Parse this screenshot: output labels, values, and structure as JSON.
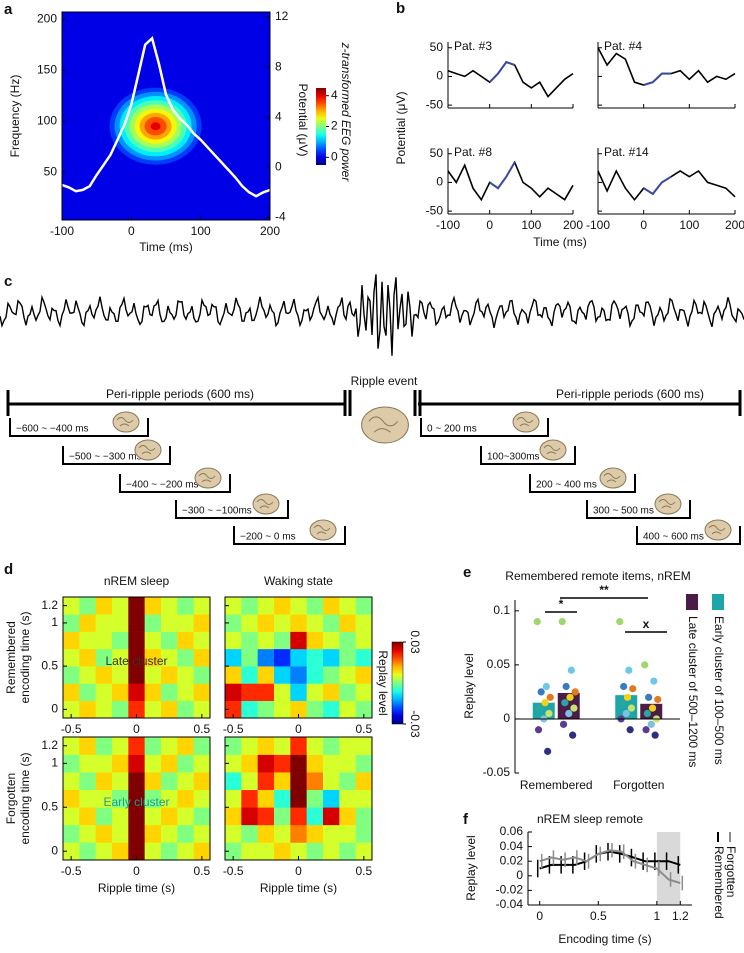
{
  "chart_data": [
    {
      "panel": "a",
      "type": "spectrogram",
      "xlabel": "Time (ms)",
      "ylabel": "Frequency (Hz)",
      "y2label": "Potential (μV)",
      "colorbar_label": "z-transformed EEG power",
      "xlim": [
        -100,
        200
      ],
      "xticks": [
        -100,
        0,
        100,
        200
      ],
      "ylim": [
        3,
        207
      ],
      "yticks": [
        50,
        100,
        150,
        200
      ],
      "y2lim": [
        -4.2,
        12.4
      ],
      "y2ticks": [
        -4,
        0,
        4,
        8,
        12
      ],
      "clim": [
        -0.5,
        4.5
      ],
      "cticks": [
        0,
        2,
        4
      ],
      "peak": {
        "x": 35,
        "y": 95,
        "value": 4
      },
      "line": {
        "axis": "y2",
        "color": "#ffffff",
        "x": [
          -100,
          -90,
          -80,
          -70,
          -60,
          -50,
          -40,
          -30,
          -20,
          -10,
          0,
          10,
          20,
          30,
          40,
          50,
          60,
          70,
          80,
          90,
          100,
          110,
          120,
          130,
          140,
          150,
          160,
          170,
          180,
          190,
          200
        ],
        "values": [
          -1.4,
          -1.6,
          -1.9,
          -1.8,
          -1.5,
          -0.6,
          0.2,
          1.0,
          2.2,
          3.4,
          5.0,
          7.4,
          9.8,
          10.3,
          8.2,
          5.8,
          4.6,
          3.9,
          3.4,
          2.7,
          2.2,
          1.6,
          1.0,
          0.4,
          -0.2,
          -0.8,
          -1.5,
          -2.0,
          -2.3,
          -2.0,
          -1.8
        ]
      }
    },
    {
      "panel": "b",
      "type": "line_grid",
      "xlabel": "Time (ms)",
      "ylabel": "Potential (μV)",
      "xlim": [
        -100,
        200
      ],
      "xticks": [
        -100,
        0,
        100,
        200
      ],
      "ylim": [
        -55,
        60
      ],
      "yticks": [
        -50,
        0,
        50
      ],
      "color": "#000000",
      "highlight_color": "#3b4aa0",
      "highlight_xlim": [
        0,
        60
      ],
      "x": [
        -100,
        -80,
        -60,
        -40,
        -20,
        0,
        20,
        40,
        60,
        80,
        100,
        120,
        140,
        160,
        180,
        200
      ],
      "subplots": [
        {
          "title": "Pat. #3",
          "values": [
            10,
            5,
            0,
            10,
            0,
            -10,
            5,
            25,
            20,
            -10,
            -20,
            -10,
            -35,
            -20,
            -5,
            5
          ]
        },
        {
          "title": "Pat. #4",
          "values": [
            50,
            20,
            40,
            30,
            -10,
            -15,
            -10,
            5,
            5,
            10,
            -5,
            10,
            -10,
            0,
            -5,
            5
          ]
        },
        {
          "title": "Pat. #8",
          "values": [
            20,
            0,
            30,
            -10,
            -30,
            0,
            -10,
            10,
            35,
            0,
            -10,
            -25,
            -10,
            -20,
            -30,
            -5
          ]
        },
        {
          "title": "Pat. #14",
          "values": [
            20,
            -15,
            20,
            -10,
            -30,
            -10,
            -20,
            0,
            10,
            20,
            10,
            20,
            0,
            -5,
            -10,
            -25
          ]
        }
      ]
    },
    {
      "panel": "d",
      "type": "heatmap_grid",
      "xlabel": "Ripple time (s)",
      "colorbar_label": "Replay level",
      "column_titles": [
        "nREM sleep",
        "Waking state"
      ],
      "row_labels": [
        [
          "Remembered",
          "encoding time (s)"
        ],
        [
          "Forgotten",
          "encoding time (s)"
        ]
      ],
      "xlim": [
        -0.5625,
        0.5625
      ],
      "xticks": [
        -0.5,
        0,
        0.5
      ],
      "ylim": [
        -0.1,
        1.3
      ],
      "yticks": [
        0,
        0.5,
        1,
        1.2
      ],
      "clim": [
        -0.03,
        0.03
      ],
      "cticks": [
        -0.03,
        0.03
      ],
      "x": [
        -0.5,
        -0.375,
        -0.25,
        -0.125,
        0,
        0.125,
        0.25,
        0.375,
        0.5
      ],
      "y": [
        0,
        0.2,
        0.4,
        0.6,
        0.8,
        1.0,
        1.2
      ],
      "subplots": [
        {
          "annotation": "Late cluster",
          "annotation_color": "#333333",
          "z": [
            [
              0.005,
              0.01,
              0.005,
              0.0,
              0.02,
              0.005,
              0.01,
              0.0,
              0.005
            ],
            [
              0.01,
              0.0,
              0.005,
              0.01,
              0.025,
              0.01,
              0.0,
              0.005,
              0.01
            ],
            [
              0.0,
              0.005,
              0.01,
              0.005,
              0.03,
              0.005,
              0.01,
              0.005,
              0.0
            ],
            [
              0.005,
              0.01,
              0.0,
              0.005,
              0.035,
              0.01,
              0.005,
              0.0,
              0.01
            ],
            [
              0.01,
              0.005,
              0.005,
              0.0,
              0.04,
              0.005,
              0.0,
              0.01,
              0.005
            ],
            [
              0.0,
              0.01,
              0.005,
              0.005,
              0.035,
              0.0,
              0.005,
              0.005,
              0.01
            ],
            [
              0.005,
              0.0,
              0.01,
              0.005,
              0.03,
              0.01,
              0.005,
              0.0,
              0.005
            ]
          ]
        },
        {
          "z": [
            [
              0.02,
              -0.005,
              0.0,
              0.005,
              0.01,
              0.0,
              -0.005,
              0.005,
              0.0
            ],
            [
              0.025,
              0.02,
              0.02,
              0.005,
              -0.01,
              0.005,
              0.01,
              0.0,
              0.005
            ],
            [
              0.01,
              -0.005,
              0.01,
              -0.01,
              -0.015,
              -0.005,
              0.0,
              0.005,
              0.01
            ],
            [
              -0.01,
              0.0,
              -0.015,
              -0.02,
              -0.01,
              -0.005,
              -0.01,
              0.0,
              -0.005
            ],
            [
              0.005,
              0.0,
              0.005,
              0.0,
              0.025,
              0.01,
              0.005,
              0.0,
              0.005
            ],
            [
              0.0,
              0.005,
              0.01,
              0.005,
              0.01,
              0.005,
              0.0,
              0.01,
              0.005
            ],
            [
              0.005,
              0.0,
              0.005,
              0.01,
              0.005,
              0.0,
              0.01,
              0.005,
              0.0
            ]
          ]
        },
        {
          "annotation": "Early cluster",
          "annotation_color": "#1a9c9a",
          "z": [
            [
              0.005,
              0.0,
              0.005,
              0.01,
              0.04,
              0.005,
              0.0,
              0.005,
              0.01
            ],
            [
              0.0,
              0.005,
              0.01,
              0.005,
              0.03,
              0.01,
              0.005,
              0.0,
              0.005
            ],
            [
              0.005,
              0.01,
              0.0,
              0.005,
              0.035,
              0.005,
              0.01,
              0.005,
              0.0
            ],
            [
              0.01,
              0.005,
              0.005,
              0.0,
              0.04,
              0.0,
              0.005,
              0.01,
              0.005
            ],
            [
              0.005,
              0.0,
              0.01,
              0.005,
              0.03,
              0.01,
              0.0,
              0.005,
              0.01
            ],
            [
              0.0,
              0.005,
              0.005,
              0.01,
              0.025,
              0.005,
              0.01,
              0.0,
              0.005
            ],
            [
              0.005,
              0.01,
              0.0,
              0.005,
              0.02,
              0.0,
              0.005,
              0.01,
              0.0
            ]
          ]
        },
        {
          "z": [
            [
              0.0,
              0.005,
              0.005,
              0.01,
              0.005,
              0.0,
              0.005,
              0.0,
              0.005
            ],
            [
              0.005,
              0.0,
              0.01,
              0.005,
              0.015,
              0.01,
              0.005,
              0.005,
              0.0
            ],
            [
              0.01,
              0.025,
              0.02,
              0.0,
              0.02,
              -0.005,
              0.025,
              0.01,
              0.0
            ],
            [
              0.005,
              0.02,
              0.01,
              -0.005,
              0.03,
              0.0,
              -0.01,
              0.005,
              0.005
            ],
            [
              -0.005,
              0.005,
              0.02,
              0.01,
              0.03,
              0.015,
              0.005,
              0.0,
              0.01
            ],
            [
              0.005,
              0.01,
              0.025,
              0.02,
              0.035,
              0.01,
              0.005,
              0.005,
              0.0
            ],
            [
              0.0,
              0.005,
              0.01,
              0.005,
              0.02,
              0.005,
              0.0,
              0.005,
              0.005
            ]
          ]
        }
      ]
    },
    {
      "panel": "e",
      "type": "bar",
      "title": "Remembered remote items, nREM",
      "ylabel": "Replay level",
      "categories": [
        "Remembered",
        "Forgotten"
      ],
      "ylim": [
        -0.05,
        0.11
      ],
      "yticks": [
        -0.05,
        0,
        0.05,
        0.1
      ],
      "significance": [
        "*",
        "**",
        "x"
      ],
      "point_colors": [
        "#9fd86a",
        "#6dc8e8",
        "#3a7bbf",
        "#e07b22",
        "#f2d21b",
        "#2aa5a0",
        "#c7e36a",
        "#7fbfe0",
        "#5a3d91",
        "#2e2f7f"
      ],
      "series": [
        {
          "name": "Early cluster of 100–500 ms",
          "color": "#1ea5a8",
          "values": [
            0.015,
            0.022
          ],
          "points": [
            [
              0.09,
              0.03,
              0.025,
              0.02,
              0.015,
              0.01,
              0.005,
              0.0,
              -0.01,
              -0.03
            ],
            [
              0.09,
              0.045,
              0.03,
              0.028,
              0.02,
              0.015,
              0.01,
              0.005,
              0.0,
              -0.01
            ]
          ]
        },
        {
          "name": "Late cluster of 500–1200 ms",
          "color": "#4b1c48",
          "values": [
            0.024,
            0.014
          ],
          "points": [
            [
              0.09,
              0.045,
              0.03,
              0.025,
              0.02,
              0.015,
              0.01,
              0.005,
              -0.005,
              -0.015
            ],
            [
              0.05,
              0.035,
              0.02,
              0.018,
              0.01,
              0.005,
              0.0,
              -0.005,
              -0.01,
              -0.015
            ]
          ]
        }
      ]
    },
    {
      "panel": "f",
      "type": "line_errorbar",
      "title": "nREM sleep remote",
      "xlabel": "Encoding time (s)",
      "ylabel": "Replay level",
      "xlim": [
        -0.1,
        1.3
      ],
      "xticks": [
        0,
        0.5,
        1,
        1.2
      ],
      "ylim": [
        -0.04,
        0.06
      ],
      "yticks": [
        -0.04,
        -0.02,
        0,
        0.02,
        0.04,
        0.06
      ],
      "highlight_xlim": [
        1.0,
        1.2
      ],
      "x": [
        0,
        0.1,
        0.2,
        0.3,
        0.4,
        0.5,
        0.6,
        0.7,
        0.8,
        0.9,
        1.0,
        1.1,
        1.2
      ],
      "series": [
        {
          "name": "Remembered",
          "color": "#000000",
          "values": [
            0.01,
            0.015,
            0.015,
            0.015,
            0.02,
            0.03,
            0.033,
            0.03,
            0.025,
            0.02,
            0.02,
            0.02,
            0.015
          ],
          "errors": [
            0.012,
            0.012,
            0.012,
            0.012,
            0.012,
            0.012,
            0.012,
            0.012,
            0.012,
            0.012,
            0.012,
            0.012,
            0.012
          ]
        },
        {
          "name": "Forgotten",
          "color": "#8c8c8c",
          "values": [
            0.02,
            0.025,
            0.022,
            0.025,
            0.02,
            0.03,
            0.035,
            0.033,
            0.02,
            0.015,
            0.01,
            -0.005,
            -0.01
          ],
          "errors": [
            0.01,
            0.01,
            0.01,
            0.01,
            0.01,
            0.01,
            0.01,
            0.01,
            0.01,
            0.01,
            0.01,
            0.01,
            0.01
          ]
        }
      ]
    }
  ],
  "diagram": {
    "panel": "c",
    "event_label": "Ripple event",
    "period_labels": [
      "Peri-ripple periods (600 ms)",
      "Peri-ripple periods (600 ms)"
    ],
    "windows_left": [
      "−600 ~ −400 ms",
      "−500 ~ −300 ms",
      "−400 ~ −200 ms",
      "−300 ~ −100ms",
      "−200 ~ 0 ms"
    ],
    "windows_right": [
      "0 ~ 200 ms",
      "100~300ms",
      "200 ~ 400 ms",
      "300 ~ 500 ms",
      "400 ~ 600 ms"
    ]
  }
}
